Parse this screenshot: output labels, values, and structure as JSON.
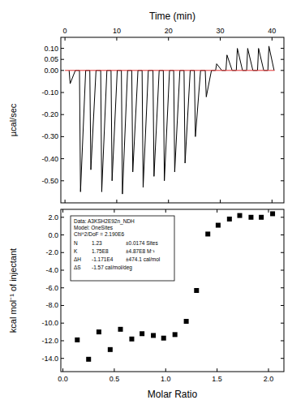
{
  "chart_data": [
    {
      "type": "line",
      "xlabel": "Time (min)",
      "ylabel": "µcal/sec",
      "xlim": [
        -0.8,
        42.3
      ],
      "xticks": [
        0,
        10,
        20,
        30,
        40
      ],
      "ylim": [
        -0.6,
        0.15
      ],
      "yticks": [
        {
          "value": 0.1,
          "label": "0.10"
        },
        {
          "value": 0.05,
          "label": "0.05"
        },
        {
          "value": 0,
          "label": "0.00"
        },
        {
          "value": -0.1,
          "label": "-0.10"
        },
        {
          "value": -0.2,
          "label": "-0.20"
        },
        {
          "value": -0.3,
          "label": "-0.30"
        },
        {
          "value": -0.4,
          "label": "-0.40"
        },
        {
          "value": -0.5,
          "label": "-0.50"
        }
      ],
      "series": [
        {
          "color": "#000000",
          "x": [
            0.8,
            1.0,
            2.0,
            2.8,
            3.0,
            4.0,
            4.8,
            5.0,
            6.0,
            6.9,
            7.1,
            8.1,
            8.9,
            9.1,
            10.1,
            10.9,
            11.1,
            12.1,
            12.9,
            13.1,
            14.1,
            14.9,
            15.1,
            16.1,
            17.0,
            17.2,
            18.2,
            19.0,
            19.2,
            20.2,
            21.0,
            21.2,
            22.2,
            23.0,
            23.2,
            24.2,
            25.0,
            25.2,
            26.2,
            27.1,
            27.3,
            28.3,
            29.1,
            29.3,
            30.3,
            31.1,
            31.3,
            32.3,
            33.1,
            33.3,
            34.3,
            35.1,
            35.3,
            36.3,
            37.2,
            37.4,
            38.4,
            39.2,
            39.4,
            40.4
          ],
          "values": [
            0,
            -0.06,
            0,
            0,
            -0.55,
            0,
            0,
            -0.45,
            0,
            0,
            -0.55,
            0,
            0,
            -0.5,
            0,
            0,
            -0.56,
            0,
            0,
            -0.46,
            0,
            0,
            -0.53,
            0,
            0,
            -0.48,
            0,
            0,
            -0.5,
            0,
            0,
            -0.46,
            0,
            0,
            -0.42,
            0,
            0,
            -0.3,
            0,
            0,
            -0.12,
            0,
            0,
            0.03,
            0,
            0,
            0.07,
            0,
            0,
            0.1,
            0,
            0,
            0.1,
            0,
            0,
            0.1,
            0,
            0,
            0.11,
            0
          ]
        },
        {
          "color": "#e03030",
          "x": [
            0,
            40.5
          ],
          "values": [
            0,
            0
          ]
        }
      ]
    },
    {
      "type": "scatter",
      "xlabel": "Molar Ratio",
      "ylabel": "kcal mol⁻¹ of injectant",
      "xlim": [
        -0.02,
        2.15
      ],
      "xticks": [
        {
          "value": 0,
          "label": "0.0"
        },
        0.5,
        {
          "value": 1,
          "label": "1.0"
        },
        1.5,
        {
          "value": 2,
          "label": "2.0"
        }
      ],
      "ylim": [
        -15.5,
        2.9
      ],
      "yticks": [
        {
          "value": 2,
          "label": "2.0"
        },
        {
          "value": 0,
          "label": "0.0"
        },
        {
          "value": -2,
          "label": "-2.0"
        },
        {
          "value": -4,
          "label": "-4.0"
        },
        {
          "value": -6,
          "label": "-6.0"
        },
        {
          "value": -8,
          "label": "-8.0"
        },
        {
          "value": -10,
          "label": "-10.0"
        },
        {
          "value": -12,
          "label": "-12.0"
        },
        {
          "value": -14,
          "label": "-14.0"
        }
      ],
      "series": [
        {
          "color": "#000000",
          "marker": "square",
          "x": [
            0.14,
            0.25,
            0.35,
            0.46,
            0.56,
            0.67,
            0.77,
            0.88,
            0.98,
            1.09,
            1.2,
            1.3,
            1.41,
            1.51,
            1.62,
            1.72,
            1.83,
            1.93,
            2.04
          ],
          "values": [
            -11.9,
            -14.1,
            -11.0,
            -13.0,
            -10.7,
            -11.8,
            -11.2,
            -11.4,
            -11.7,
            -11.3,
            -9.8,
            -6.3,
            0.1,
            1.1,
            1.8,
            2.2,
            2.0,
            2.0,
            2.4
          ]
        }
      ],
      "annotations": {
        "lines": [
          "Data: A3KSH2E92n_NDH",
          "Model: OneSites",
          "Chi^2/DoF = 2.190E6"
        ],
        "params": [
          {
            "name": "N",
            "value": "1.23",
            "error": "±0.0174 Sites"
          },
          {
            "name": "K",
            "value": "1.75E8",
            "error": "±4.87E8 M⁻¹"
          },
          {
            "name": "ΔH",
            "value": "-1.171E4",
            "error": "±474.1 cal/mol"
          },
          {
            "name": "ΔS",
            "value": "-1.57 cal/mol/deg"
          }
        ]
      }
    }
  ]
}
